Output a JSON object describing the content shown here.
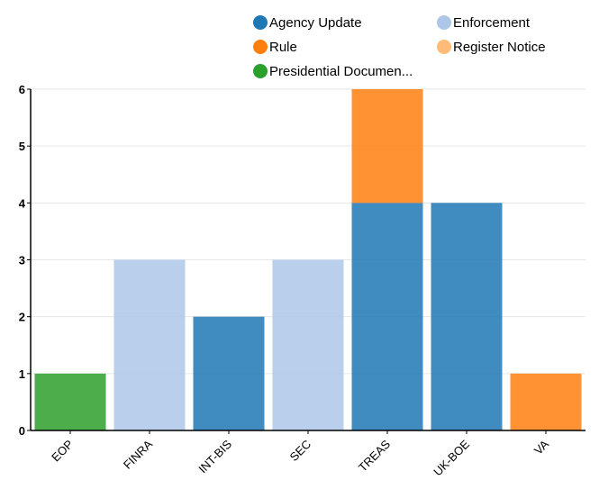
{
  "chart_data": {
    "type": "bar",
    "stacked": true,
    "categories": [
      "EOP",
      "FINRA",
      "INT-BIS",
      "SEC",
      "TREAS",
      "UK-BOE",
      "VA"
    ],
    "series": [
      {
        "name": "Agency Update",
        "color": "#1f77b4",
        "values": [
          0,
          0,
          2,
          0,
          4,
          4,
          0
        ]
      },
      {
        "name": "Enforcement",
        "color": "#aec7e8",
        "values": [
          0,
          3,
          0,
          3,
          0,
          0,
          0
        ]
      },
      {
        "name": "Rule",
        "color": "#ff7f0e",
        "values": [
          0,
          0,
          0,
          0,
          2,
          0,
          1
        ]
      },
      {
        "name": "Register Notice",
        "color": "#ffbb78",
        "values": [
          0,
          0,
          0,
          0,
          0,
          0,
          0
        ]
      },
      {
        "name": "Presidential Documen...",
        "color": "#2ca02c",
        "values": [
          1,
          0,
          0,
          0,
          0,
          0,
          0
        ]
      }
    ],
    "y_ticks": [
      0,
      1,
      2,
      3,
      4,
      5,
      6
    ],
    "ylim": [
      0,
      6
    ],
    "grid": true,
    "legend_position": "top-right",
    "xlabel": "",
    "ylabel": ""
  }
}
